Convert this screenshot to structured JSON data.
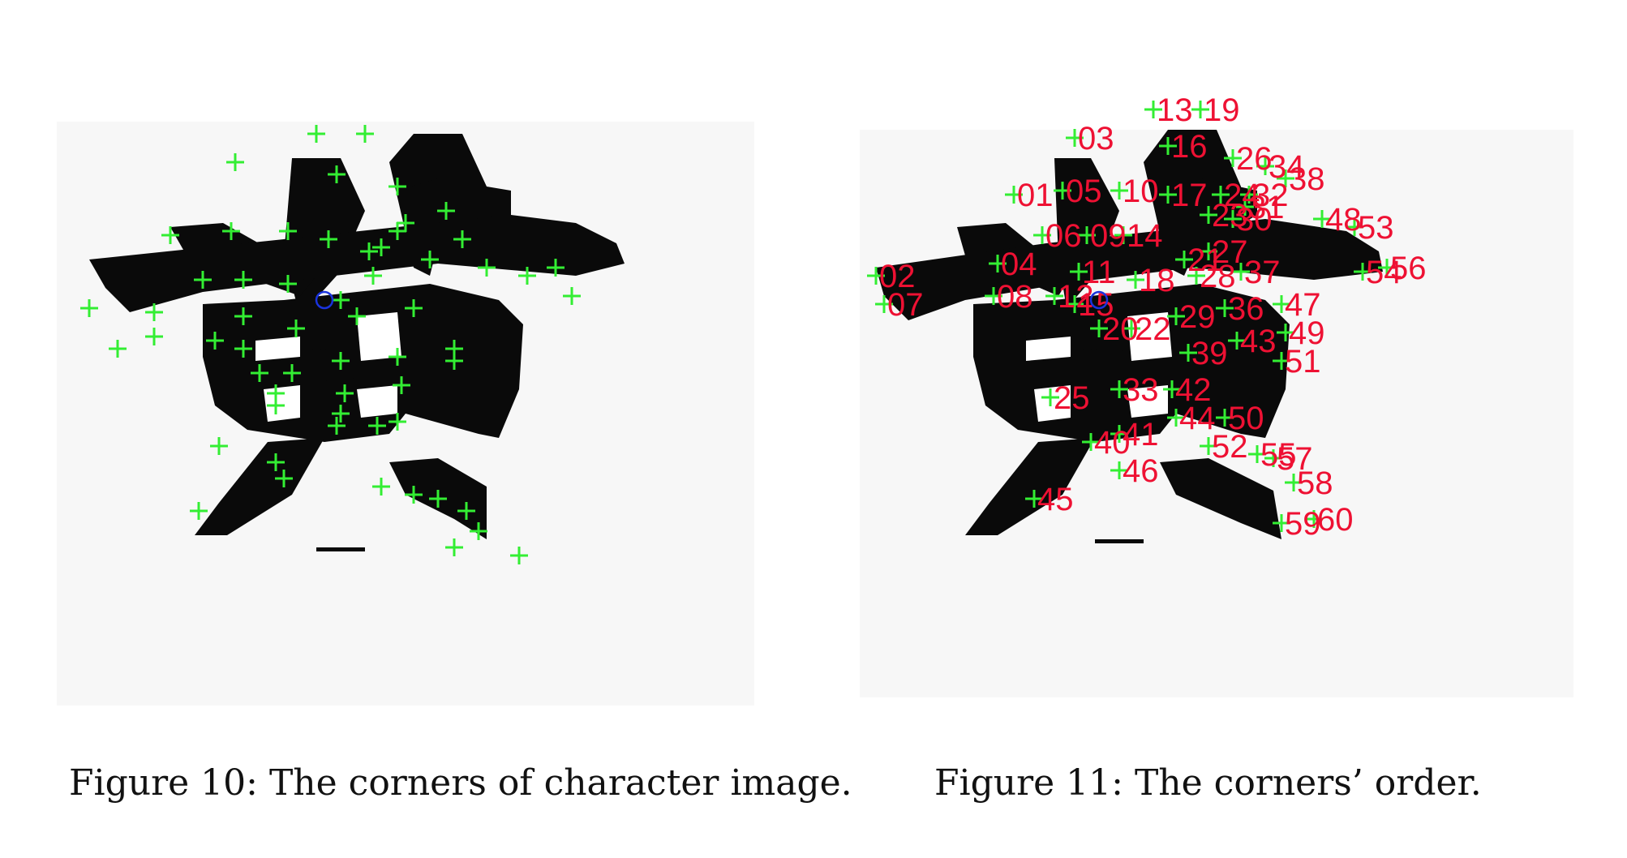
{
  "figures": [
    {
      "id": "fig10",
      "caption": "Figure 10: The corners of character image."
    },
    {
      "id": "fig11",
      "caption": "Figure 11: The corners’ order.",
      "corner_labels": [
        "13",
        "19",
        "03",
        "16",
        "26",
        "34",
        "38",
        "01",
        "05",
        "10",
        "17",
        "24",
        "32",
        "31",
        "23",
        "30",
        "48",
        "53",
        "02",
        "04",
        "06",
        "09",
        "14",
        "27",
        "54",
        "56",
        "07",
        "08",
        "11",
        "21",
        "28",
        "37",
        "18",
        "12",
        "15",
        "36",
        "47",
        "20",
        "22",
        "29",
        "49",
        "39",
        "43",
        "51",
        "33",
        "42",
        "25",
        "44",
        "50",
        "41",
        "40",
        "52",
        "55",
        "57",
        "46",
        "58",
        "45",
        "59",
        "60"
      ]
    }
  ],
  "colors": {
    "ink": "#0a0a0a",
    "corner_marker": "#33ee33",
    "order_label": "#ee1133",
    "centroid_marker": "#1a33dd"
  }
}
